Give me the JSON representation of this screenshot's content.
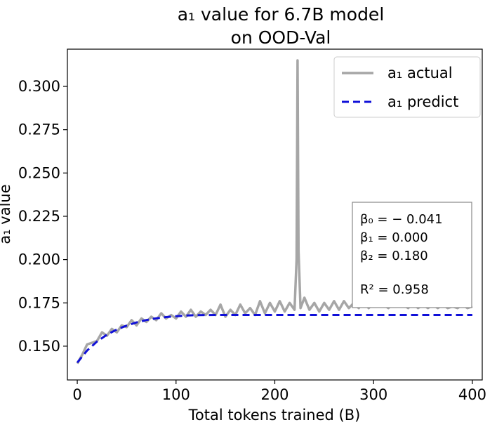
{
  "chart_data": {
    "type": "line",
    "title_line1": "a₁ value for 6.7B model",
    "title_line2": "on OOD-Val",
    "xlabel": "Total tokens trained (B)",
    "ylabel": "a₁ value",
    "xlim": [
      -10,
      410
    ],
    "ylim": [
      0.1305,
      0.3215
    ],
    "xticks": [
      0,
      100,
      200,
      300,
      400
    ],
    "xtick_labels": [
      "0",
      "100",
      "200",
      "300",
      "400"
    ],
    "yticks": [
      0.15,
      0.175,
      0.2,
      0.225,
      0.25,
      0.275,
      0.3
    ],
    "ytick_labels": [
      "0.150",
      "0.175",
      "0.200",
      "0.225",
      "0.250",
      "0.275",
      "0.300"
    ],
    "series": [
      {
        "name": "a₁ actual",
        "color": "#a6a6a6",
        "style": "solid",
        "x": [
          0,
          5,
          10,
          15,
          20,
          25,
          30,
          35,
          40,
          45,
          50,
          55,
          60,
          65,
          70,
          75,
          80,
          85,
          90,
          95,
          100,
          105,
          110,
          115,
          120,
          125,
          130,
          135,
          140,
          145,
          150,
          155,
          160,
          165,
          170,
          175,
          180,
          185,
          190,
          195,
          200,
          205,
          210,
          215,
          220,
          222,
          223,
          224,
          226,
          230,
          235,
          240,
          245,
          250,
          255,
          260,
          265,
          270,
          275,
          280,
          285,
          290,
          295,
          300,
          305,
          310,
          315,
          320,
          325,
          330,
          335,
          340,
          345,
          350,
          355,
          360,
          365,
          370,
          375,
          380,
          385,
          390,
          395,
          400
        ],
        "values": [
          0.14,
          0.145,
          0.151,
          0.152,
          0.153,
          0.158,
          0.156,
          0.16,
          0.158,
          0.162,
          0.161,
          0.165,
          0.162,
          0.166,
          0.164,
          0.167,
          0.165,
          0.169,
          0.166,
          0.168,
          0.166,
          0.17,
          0.167,
          0.171,
          0.167,
          0.17,
          0.168,
          0.171,
          0.168,
          0.174,
          0.167,
          0.171,
          0.168,
          0.174,
          0.169,
          0.172,
          0.168,
          0.176,
          0.169,
          0.175,
          0.17,
          0.176,
          0.17,
          0.175,
          0.171,
          0.2,
          0.315,
          0.205,
          0.172,
          0.178,
          0.171,
          0.175,
          0.17,
          0.175,
          0.171,
          0.176,
          0.171,
          0.176,
          0.172,
          0.175,
          0.172,
          0.177,
          0.172,
          0.175,
          0.173,
          0.174,
          0.172,
          0.175,
          0.173,
          0.174,
          0.172,
          0.175,
          0.172,
          0.174,
          0.172,
          0.174,
          0.172,
          0.174,
          0.172,
          0.173,
          0.172,
          0.174,
          0.172,
          0.173
        ]
      },
      {
        "name": "a₁ predict",
        "color": "#1010d8",
        "style": "dashed",
        "x": [
          0,
          10,
          20,
          30,
          40,
          50,
          60,
          70,
          80,
          90,
          100,
          110,
          120,
          140,
          160,
          180,
          200,
          250,
          300,
          350,
          400
        ],
        "values": [
          0.1405,
          0.1475,
          0.1527,
          0.1566,
          0.1596,
          0.1619,
          0.1637,
          0.1651,
          0.1661,
          0.1668,
          0.1673,
          0.1677,
          0.1679,
          0.168,
          0.168,
          0.168,
          0.168,
          0.168,
          0.168,
          0.168,
          0.168
        ]
      }
    ],
    "legend": {
      "position": "top-right",
      "items": [
        {
          "label": "a₁ actual",
          "color": "#a6a6a6",
          "style": "solid"
        },
        {
          "label": "a₁ predict",
          "color": "#1010d8",
          "style": "dashed"
        }
      ]
    },
    "annotation": {
      "lines": [
        "β₀ = − 0.041",
        "β₁ = 0.000",
        "β₂ = 0.180",
        "",
        "R² = 0.958"
      ]
    }
  }
}
